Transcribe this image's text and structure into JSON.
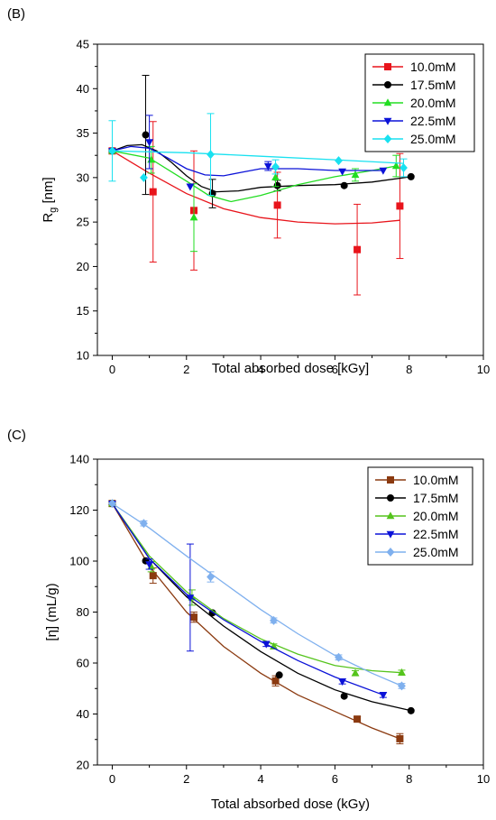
{
  "chart_data": [
    {
      "type": "scatter",
      "panel_label": "(B)",
      "xlabel": "Total absorbed dose [kGy]",
      "ylabel_main": "R",
      "ylabel_sub": "g",
      "ylabel_unit": " [nm]",
      "xlim": [
        -0.4,
        10
      ],
      "ylim": [
        10,
        45
      ],
      "xticks": [
        0,
        2,
        4,
        6,
        8,
        10
      ],
      "yticks": [
        10,
        15,
        20,
        25,
        30,
        35,
        40,
        45
      ],
      "grid": false,
      "legend": "top-right",
      "series": [
        {
          "name": "10.0mM",
          "color": "#e8141b",
          "marker": "square",
          "x": [
            0,
            1.1,
            2.2,
            4.45,
            6.6,
            7.75
          ],
          "y": [
            33.0,
            28.4,
            26.3,
            26.9,
            21.9,
            26.8
          ],
          "err": [
            0,
            7.9,
            6.7,
            3.7,
            5.1,
            5.9
          ],
          "fit_x": [
            0,
            1.0,
            2.0,
            3.0,
            4.0,
            5.0,
            6.0,
            7.0,
            7.75
          ],
          "fit_y": [
            33.0,
            30.5,
            28.2,
            26.5,
            25.5,
            25.0,
            24.8,
            24.9,
            25.2
          ]
        },
        {
          "name": "17.5mM",
          "color": "#000000",
          "marker": "circle",
          "x": [
            0,
            0.9,
            2.7,
            4.45,
            6.25,
            8.05
          ],
          "y": [
            33.0,
            34.8,
            28.2,
            29.1,
            29.1,
            30.1
          ],
          "err": [
            0,
            6.7,
            1.6,
            0.6,
            0,
            0
          ],
          "fit_x": [
            0,
            0.4,
            0.8,
            1.2,
            1.6,
            2.0,
            2.4,
            2.8,
            3.4,
            4.0,
            5.0,
            6.0,
            7.0,
            8.05
          ],
          "fit_y": [
            33.0,
            33.6,
            33.7,
            33.0,
            31.7,
            30.2,
            29.0,
            28.4,
            28.5,
            28.9,
            29.1,
            29.2,
            29.5,
            30.1
          ]
        },
        {
          "name": "20.0mM",
          "color": "#22dd22",
          "marker": "triangle-up",
          "x": [
            0,
            1.05,
            2.2,
            4.4,
            6.55,
            7.65
          ],
          "y": [
            33.0,
            32.0,
            25.5,
            30.0,
            30.3,
            31.3
          ],
          "err": [
            0,
            1.5,
            3.8,
            1.0,
            0.7,
            1.2
          ],
          "fit_x": [
            0,
            1.0,
            2.0,
            2.6,
            3.2,
            4.0,
            5.0,
            6.0,
            7.0,
            7.65
          ],
          "fit_y": [
            33.0,
            32.2,
            29.6,
            28.0,
            27.3,
            28.0,
            29.2,
            30.1,
            30.8,
            31.3
          ]
        },
        {
          "name": "22.5mM",
          "color": "#0b12d8",
          "marker": "triangle-down",
          "x": [
            0,
            1.0,
            2.1,
            4.2,
            6.2,
            7.3
          ],
          "y": [
            33.0,
            34.0,
            29.0,
            31.3,
            30.7,
            30.8
          ],
          "err": [
            0,
            3.0,
            0,
            0.5,
            0,
            0
          ],
          "fit_x": [
            0,
            0.5,
            1.0,
            1.5,
            2.0,
            2.5,
            3.0,
            3.5,
            4.0,
            5.0,
            6.0,
            7.3
          ],
          "fit_y": [
            33.0,
            33.5,
            33.3,
            32.2,
            31.0,
            30.3,
            30.2,
            30.6,
            31.0,
            31.0,
            30.8,
            30.8
          ]
        },
        {
          "name": "25.0mM",
          "color": "#19e1f0",
          "marker": "diamond",
          "x": [
            0,
            0.85,
            2.65,
            4.4,
            6.1,
            7.85
          ],
          "y": [
            33.0,
            30.0,
            32.6,
            31.2,
            31.9,
            31.1
          ],
          "err": [
            3.4,
            0,
            4.6,
            0.8,
            0,
            1.0
          ],
          "fit_x": [
            0,
            2.0,
            4.0,
            6.0,
            7.85
          ],
          "fit_y": [
            33.0,
            32.8,
            32.4,
            32.0,
            31.6
          ]
        }
      ]
    },
    {
      "type": "scatter",
      "panel_label": "(C)",
      "xlabel": "Total absorbed dose (kGy)",
      "ylabel": "[η] (mL/g)",
      "xlim": [
        -0.4,
        10
      ],
      "ylim": [
        20,
        140
      ],
      "xticks": [
        0,
        2,
        4,
        6,
        8,
        10
      ],
      "yticks": [
        20,
        40,
        60,
        80,
        100,
        120,
        140
      ],
      "grid": false,
      "legend": "top-right",
      "series": [
        {
          "name": "10.0mM",
          "color": "#8b3a10",
          "marker": "square",
          "x": [
            0,
            1.1,
            2.2,
            4.4,
            6.6,
            7.75
          ],
          "y": [
            122.6,
            94.3,
            78.0,
            53.0,
            38.0,
            30.3
          ],
          "err": [
            0,
            3,
            2,
            2,
            1,
            2
          ],
          "fit_x": [
            0,
            1.0,
            2.0,
            3.0,
            4.0,
            5.0,
            6.0,
            7.0,
            7.75
          ],
          "fit_y": [
            122.6,
            98,
            80,
            66.5,
            56,
            47.5,
            41,
            34.5,
            30.3
          ]
        },
        {
          "name": "17.5mM",
          "color": "#000000",
          "marker": "circle",
          "x": [
            0,
            0.9,
            2.7,
            4.5,
            6.25,
            8.05
          ],
          "y": [
            122.6,
            100.1,
            79.7,
            55.3,
            47.0,
            41.3
          ],
          "err": [
            0,
            0,
            0,
            0,
            0,
            0
          ],
          "fit_x": [
            0,
            1.0,
            2.0,
            3.0,
            4.0,
            5.0,
            6.0,
            7.0,
            8.05
          ],
          "fit_y": [
            122.6,
            101,
            86,
            74.5,
            64.5,
            56,
            49.5,
            44.8,
            41.3
          ]
        },
        {
          "name": "20.0mM",
          "color": "#55c41c",
          "marker": "triangle-up",
          "x": [
            0,
            1.05,
            2.15,
            4.35,
            6.55,
            7.8
          ],
          "y": [
            122.6,
            97.8,
            85.7,
            66.5,
            56.0,
            56.2
          ],
          "err": [
            0,
            2,
            3,
            1,
            1,
            1
          ],
          "fit_x": [
            0,
            1.0,
            2.0,
            3.0,
            4.0,
            5.0,
            6.0,
            7.0,
            7.8
          ],
          "fit_y": [
            122.6,
            102,
            88,
            77.5,
            69.5,
            63.5,
            59,
            57,
            56.2
          ]
        },
        {
          "name": "22.5mM",
          "color": "#0b12d8",
          "marker": "triangle-down",
          "x": [
            0,
            1.0,
            2.1,
            4.15,
            6.2,
            7.3
          ],
          "y": [
            122.6,
            98.8,
            85.7,
            67.5,
            52.8,
            47.5
          ],
          "err": [
            0,
            2,
            21,
            1,
            1,
            1
          ],
          "fit_x": [
            0,
            1.0,
            2.0,
            3.0,
            4.0,
            5.0,
            6.0,
            7.3
          ],
          "fit_y": [
            122.6,
            101,
            87,
            77,
            68.5,
            61,
            54.5,
            47.5
          ]
        },
        {
          "name": "25.0mM",
          "color": "#7fb0ee",
          "marker": "diamond",
          "x": [
            0,
            0.85,
            2.65,
            4.35,
            6.1,
            7.8
          ],
          "y": [
            122.6,
            114.8,
            93.8,
            76.7,
            62.2,
            51.0
          ],
          "err": [
            0,
            1,
            2,
            1,
            1,
            1
          ],
          "fit_x": [
            0,
            1.0,
            2.0,
            3.0,
            4.0,
            5.0,
            6.0,
            7.0,
            7.8
          ],
          "fit_y": [
            122.6,
            113,
            102,
            91.5,
            81,
            71.5,
            63,
            56,
            51.0
          ]
        }
      ]
    }
  ]
}
